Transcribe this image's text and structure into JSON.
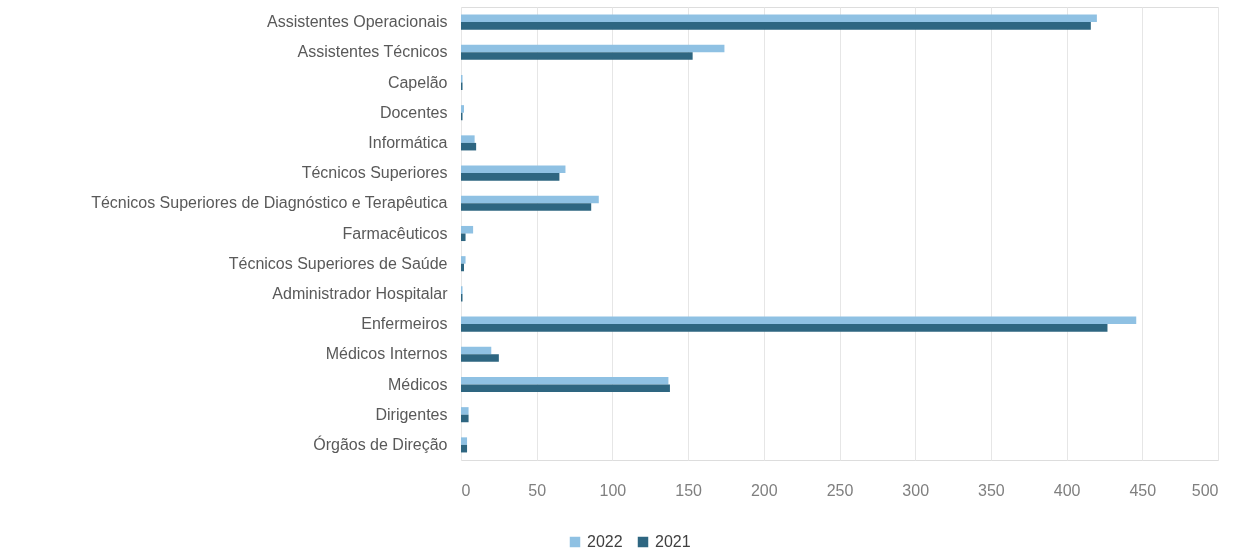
{
  "chart_data": {
    "type": "bar",
    "orientation": "horizontal",
    "categories": [
      "Assistentes Operacionais",
      "Assistentes Técnicos",
      "Capelão",
      "Docentes",
      "Informática",
      "Técnicos Superiores",
      "Técnicos Superiores de  Diagnóstico e Terapêutica",
      "Farmacêuticos",
      "Técnicos Superiores de Saúde",
      "Administrador Hospitalar",
      "Enfermeiros",
      "Médicos Internos",
      "Médicos",
      "Dirigentes",
      "Órgãos de Direção"
    ],
    "series": [
      {
        "name": "2022",
        "color": "#8fc1e3",
        "values": [
          420,
          174,
          1,
          2,
          9,
          69,
          91,
          8,
          3,
          1,
          446,
          20,
          137,
          5,
          4
        ]
      },
      {
        "name": "2021",
        "color": "#2e6681",
        "values": [
          416,
          153,
          1,
          1,
          10,
          65,
          86,
          3,
          2,
          1,
          427,
          25,
          138,
          5,
          4
        ]
      }
    ],
    "xlim": [
      0,
      500
    ],
    "xticks": [
      0,
      50,
      100,
      150,
      200,
      250,
      300,
      350,
      400,
      450,
      500
    ],
    "grid": "x",
    "legend": "bottom"
  }
}
